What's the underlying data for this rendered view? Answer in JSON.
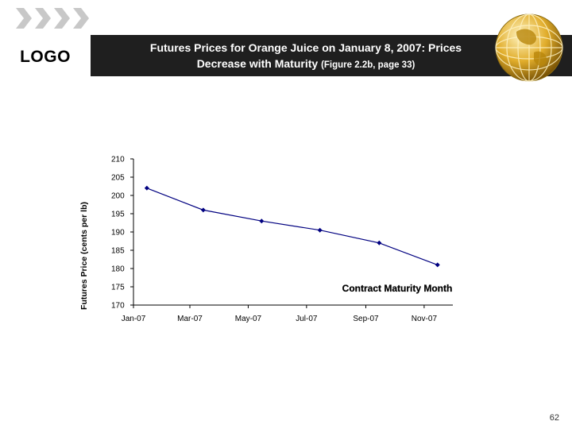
{
  "slide": {
    "logo_text": "LOGO",
    "title_line1": "Futures Prices for Orange Juice on January 8, 2007: Prices",
    "title_line2_main": "Decrease with Maturity",
    "title_line2_ref": "(Figure 2.2b, page 33)",
    "page_number": "62",
    "icons": [
      "chevrons-icon",
      "globe-icon"
    ],
    "colors": {
      "header_band": "#1f1f1f",
      "series": "#000080",
      "globe": "#d9a521"
    }
  },
  "chart_data": {
    "type": "line",
    "title": "",
    "ylabel": "Futures Price (cents per lb)",
    "xlabel": "Contract Maturity Month",
    "ylim": [
      170,
      210
    ],
    "yticks": [
      170,
      175,
      180,
      185,
      190,
      195,
      200,
      205,
      210
    ],
    "xticks": [
      "Jan-07",
      "Mar-07",
      "May-07",
      "Jul-07",
      "Sep-07",
      "Nov-07"
    ],
    "grid": false,
    "series": [
      {
        "color": "#000080",
        "points": [
          {
            "x": "2007-01-15",
            "y": 202
          },
          {
            "x": "2007-03-15",
            "y": 196
          },
          {
            "x": "2007-05-15",
            "y": 193
          },
          {
            "x": "2007-07-15",
            "y": 190.5
          },
          {
            "x": "2007-09-15",
            "y": 187
          },
          {
            "x": "2007-11-15",
            "y": 181
          }
        ]
      }
    ]
  }
}
